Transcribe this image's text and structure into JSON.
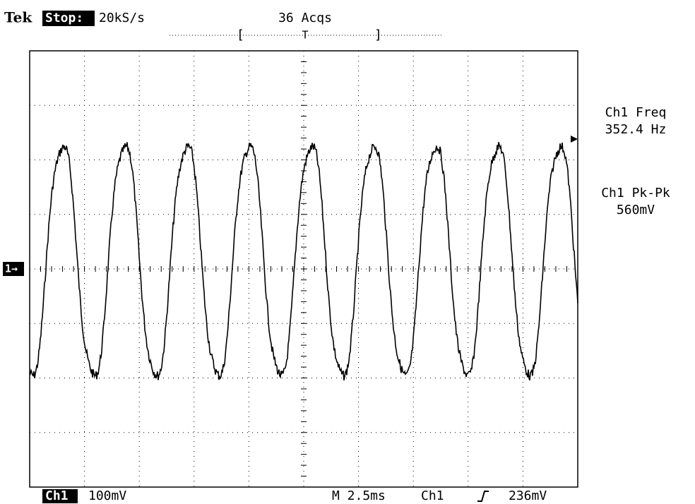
{
  "header": {
    "brand": "Tek",
    "status": "Stop:",
    "sample_rate": "20kS/s",
    "acquisitions": "36 Acqs",
    "trigger_position": "T"
  },
  "measurements": [
    {
      "label": "Ch1 Freq",
      "value": "352.4 Hz"
    },
    {
      "label": "Ch1 Pk-Pk",
      "value": "560mV"
    }
  ],
  "channel_marker": "1→",
  "footer": {
    "channel": "Ch1",
    "scale": "100mV",
    "timebase": "M 2.5ms",
    "trigger_source": "Ch1",
    "trigger_level": "236mV"
  }
}
